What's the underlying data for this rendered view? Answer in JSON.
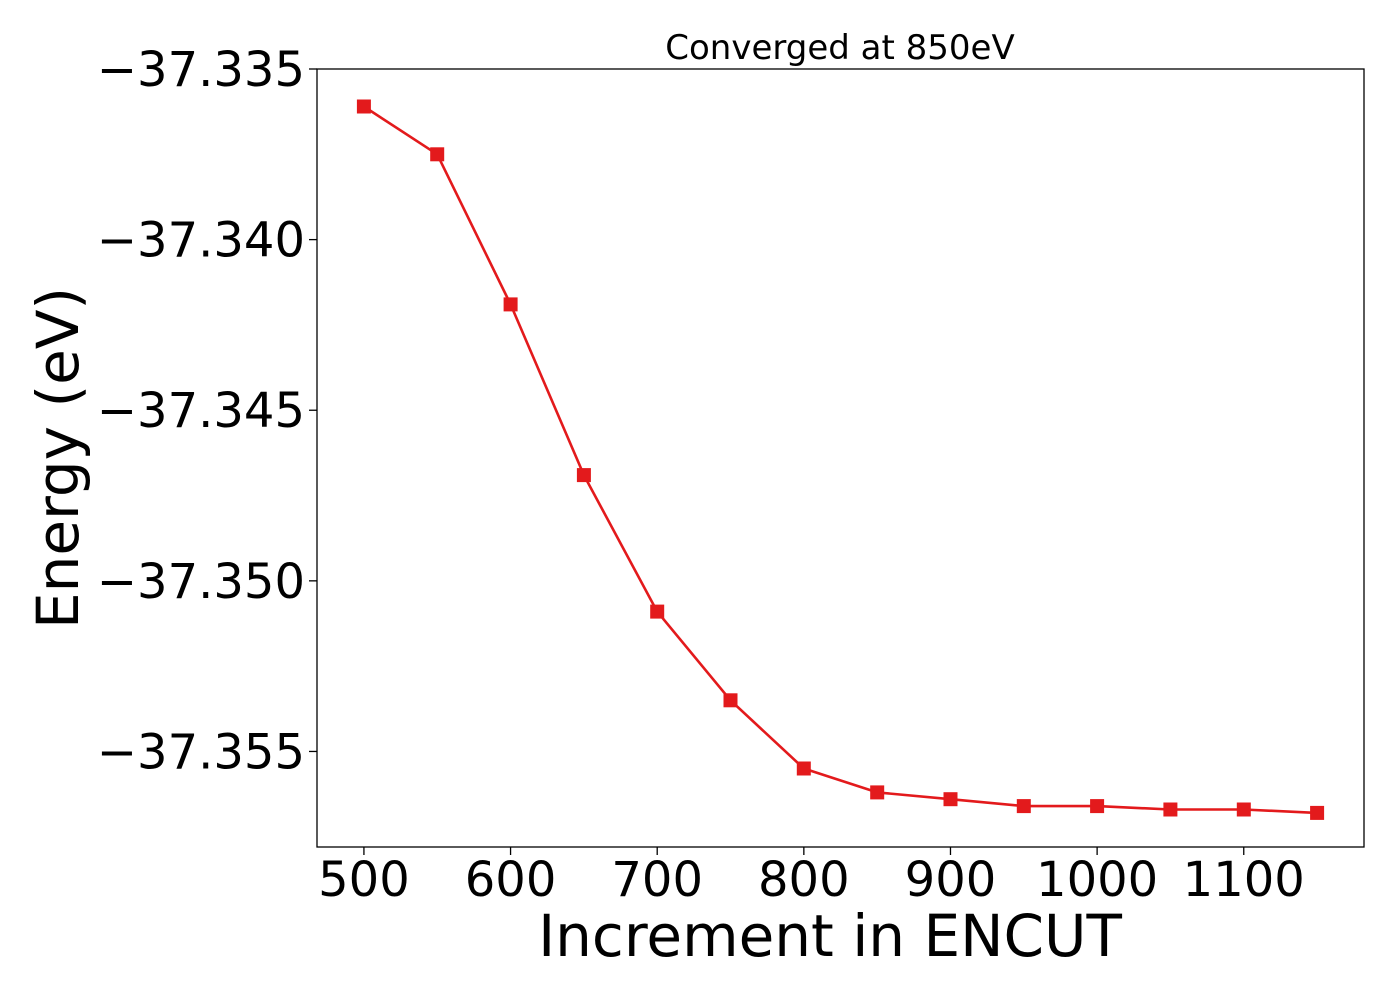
{
  "chart_data": {
    "type": "line",
    "title": "Converged at 850eV",
    "xlabel": "Increment in ENCUT",
    "ylabel": "Energy (eV)",
    "x": [
      500,
      550,
      600,
      650,
      700,
      750,
      800,
      850,
      900,
      950,
      1000,
      1050,
      1100,
      1150
    ],
    "series": [
      {
        "values": [
          -37.3361,
          -37.3375,
          -37.3419,
          -37.3469,
          -37.3509,
          -37.3535,
          -37.3555,
          -37.3562,
          -37.3564,
          -37.3566,
          -37.3566,
          -37.3567,
          -37.3567,
          -37.3568
        ],
        "color": "#e31a1c",
        "marker": "square"
      }
    ],
    "xlim": [
      468,
      1182
    ],
    "ylim": [
      -37.3578,
      -37.335
    ],
    "xticks": [
      500,
      600,
      700,
      800,
      900,
      1000,
      1100
    ],
    "xtick_labels": [
      "500",
      "600",
      "700",
      "800",
      "900",
      "1000",
      "1100"
    ],
    "yticks": [
      -37.335,
      -37.34,
      -37.345,
      -37.35,
      -37.355
    ],
    "ytick_labels": [
      "−37.335",
      "−37.340",
      "−37.345",
      "−37.350",
      "−37.355"
    ],
    "grid": false,
    "legend": false
  }
}
